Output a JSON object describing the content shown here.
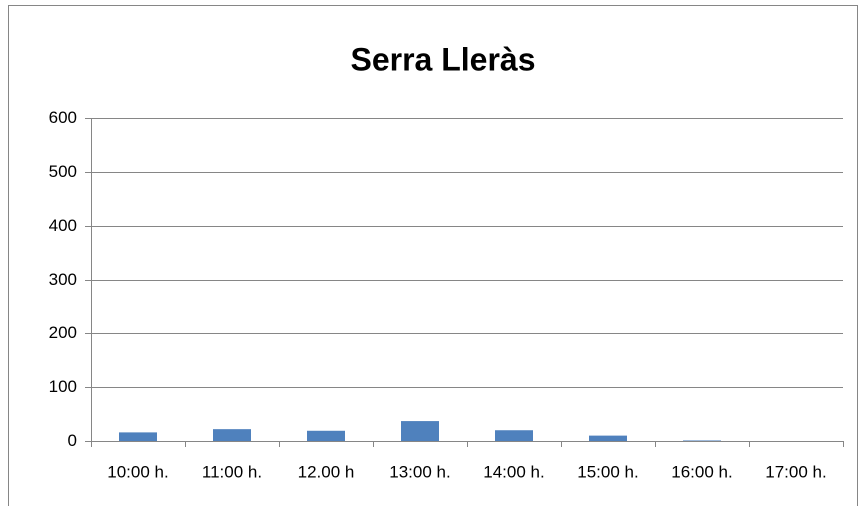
{
  "chart_data": {
    "type": "bar",
    "title": "Serra Lleràs",
    "categories": [
      "10:00 h.",
      "11:00 h.",
      "12.00 h",
      "13:00 h.",
      "14:00 h.",
      "15:00 h.",
      "16:00 h.",
      "17:00 h."
    ],
    "values": [
      16,
      22,
      19,
      37,
      20,
      10,
      1,
      0
    ],
    "color": "#4f81bd",
    "ylim": [
      0,
      600
    ],
    "yticks": [
      0,
      100,
      200,
      300,
      400,
      500,
      600
    ],
    "grid": true
  }
}
